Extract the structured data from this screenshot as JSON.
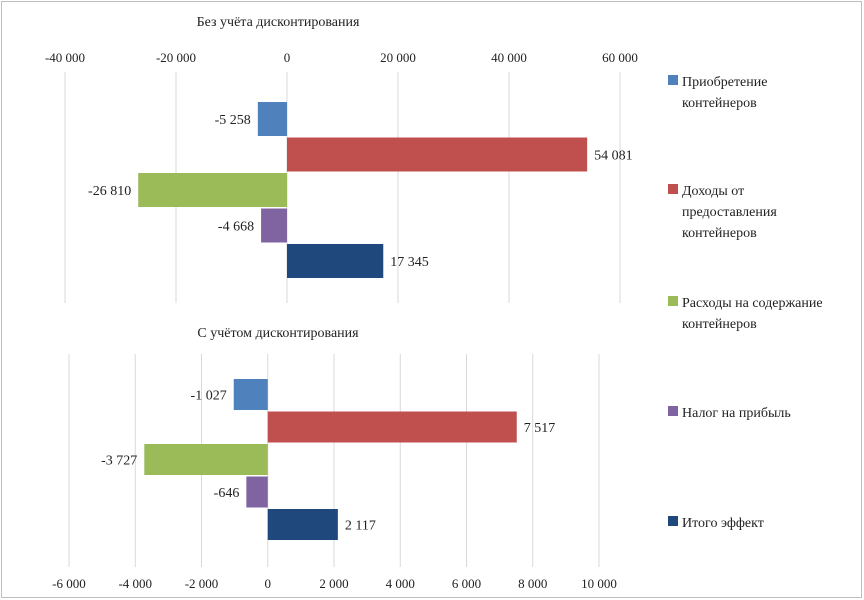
{
  "chart_data": [
    {
      "type": "bar",
      "orientation": "horizontal",
      "title": "Без учёта дисконтирования",
      "categories": [
        "Приобретение контейнеров",
        "Доходы от предоставления контейнеров",
        "Расходы на содержание контейнеров",
        "Налог на прибыль",
        "Итого эффект"
      ],
      "values": [
        -5258,
        54081,
        -26810,
        -4668,
        17345
      ],
      "value_labels": [
        "-5 258",
        "54 081",
        "-26 810",
        "-4 668",
        "17 345"
      ],
      "xlim": [
        -40000,
        60000
      ],
      "ticks": [
        -40000,
        -20000,
        0,
        20000,
        40000,
        60000
      ],
      "tick_labels": [
        "-40 000",
        "-20 000",
        "0",
        "20 000",
        "40 000",
        "60 000"
      ],
      "axis_position": "top",
      "grid": true
    },
    {
      "type": "bar",
      "orientation": "horizontal",
      "title": "С учётом дисконтирования",
      "categories": [
        "Приобретение контейнеров",
        "Доходы от предоставления контейнеров",
        "Расходы на содержание контейнеров",
        "Налог на прибыль",
        "Итого эффект"
      ],
      "values": [
        -1027,
        7517,
        -3727,
        -646,
        2117
      ],
      "value_labels": [
        "-1 027",
        "7 517",
        "-3 727",
        "-646",
        "2 117"
      ],
      "xlim": [
        -6000,
        10000
      ],
      "ticks": [
        -6000,
        -4000,
        -2000,
        0,
        2000,
        4000,
        6000,
        8000,
        10000
      ],
      "tick_labels": [
        "-6 000",
        "-4 000",
        "-2 000",
        "0",
        "2 000",
        "4 000",
        "6 000",
        "8 000",
        "10 000"
      ],
      "axis_position": "bottom",
      "grid": true
    }
  ],
  "legend": {
    "placement": "right",
    "items": [
      {
        "lines": [
          "Приобретение",
          "контейнеров"
        ],
        "color": "#4f81bd"
      },
      {
        "lines": [
          "Доходы от",
          "предоставления",
          "контейнеров"
        ],
        "color": "#c0504d"
      },
      {
        "lines": [
          "Расходы на содержание",
          "контейнеров"
        ],
        "color": "#9bbb59"
      },
      {
        "lines": [
          "Налог на прибыль"
        ],
        "color": "#8064a2"
      },
      {
        "lines": [
          "Итого эффект"
        ],
        "color": "#1f497d"
      }
    ]
  },
  "colors": {
    "series": [
      "#4f81bd",
      "#c0504d",
      "#9bbb59",
      "#8064a2",
      "#1f497d"
    ],
    "grid": "#d9d9d9",
    "border": "#bfbfbf"
  }
}
